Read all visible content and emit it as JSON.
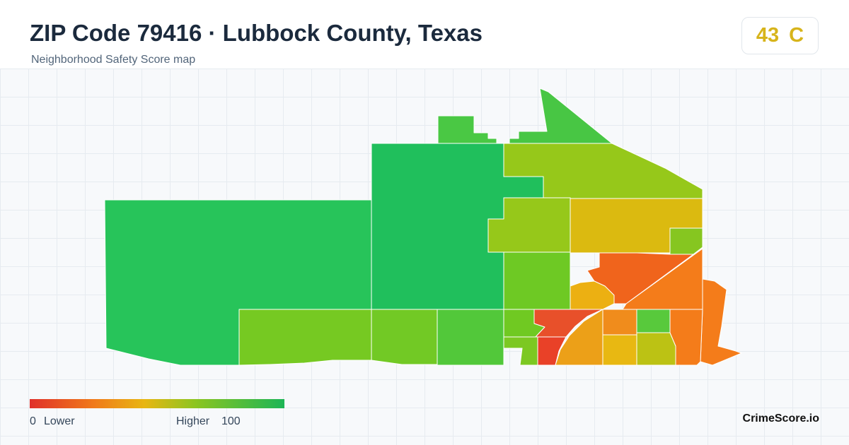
{
  "header": {
    "title": "ZIP Code 79416 · Lubbock County, Texas",
    "subtitle": "Neighborhood Safety Score map"
  },
  "score": {
    "value": "43",
    "grade": "C",
    "color": "#d7b41b"
  },
  "legend": {
    "min_value": "0",
    "min_label": "Lower",
    "max_label": "Higher",
    "max_value": "100",
    "colors": [
      "#e0312a",
      "#f07a1a",
      "#e8b612",
      "#8cc520",
      "#1db556"
    ]
  },
  "brand": "CrimeScore.io",
  "regions": [
    {
      "name": "west-tract",
      "color": "#27c45a"
    },
    {
      "name": "central-large-tract",
      "color": "#20bf5c"
    },
    {
      "name": "north-small-tract",
      "color": "#4ac844"
    },
    {
      "name": "northeast-triangle-tract",
      "color": "#48c644"
    },
    {
      "name": "northeast-tract",
      "color": "#96c81a"
    },
    {
      "name": "mid-east-tract",
      "color": "#96c81a"
    },
    {
      "name": "east-yellow-tract",
      "color": "#dbba10"
    },
    {
      "name": "east-small-green-tract",
      "color": "#86c620"
    },
    {
      "name": "south-west-tract",
      "color": "#76c922"
    },
    {
      "name": "south-mid-tract",
      "color": "#72c925"
    },
    {
      "name": "south-center-tract",
      "color": "#52c83a"
    },
    {
      "name": "south-center-east-tract",
      "color": "#70c922"
    },
    {
      "name": "center-east-tract",
      "color": "#6ec924"
    },
    {
      "name": "orange-red-tract",
      "color": "#f0641c"
    },
    {
      "name": "yellow-orange-tract",
      "color": "#ecb012"
    },
    {
      "name": "southeast-triangle-tract",
      "color": "#f47c1a"
    },
    {
      "name": "far-east-tract",
      "color": "#f47c1a"
    },
    {
      "name": "red-tract",
      "color": "#e8502a"
    },
    {
      "name": "red-south-tract",
      "color": "#e94128"
    },
    {
      "name": "orange-south-tract",
      "color": "#eca018"
    },
    {
      "name": "orange-mid-tract",
      "color": "#f08c1c"
    },
    {
      "name": "green-small-tract",
      "color": "#58c93c"
    },
    {
      "name": "yellow-south-tract",
      "color": "#e8b812"
    },
    {
      "name": "olive-tract",
      "color": "#bcc214"
    },
    {
      "name": "lime-small-tract",
      "color": "#7cc822"
    }
  ]
}
